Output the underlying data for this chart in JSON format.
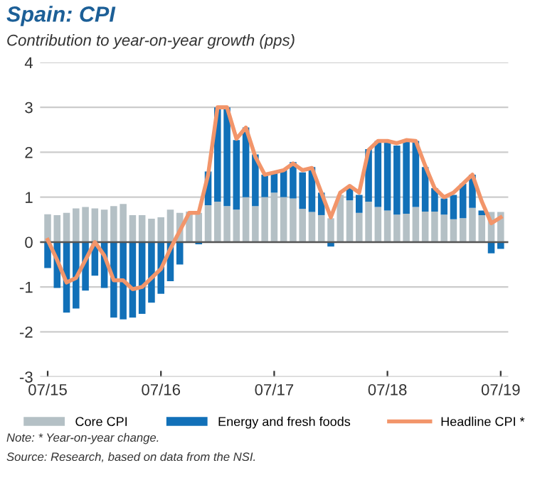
{
  "chart_data": {
    "type": "bar",
    "stacked": true,
    "title": "Spain: CPI",
    "subtitle": "Contribution to year-on-year growth (pps)",
    "categories": [
      "07/15",
      null,
      null,
      null,
      null,
      null,
      null,
      null,
      null,
      null,
      null,
      null,
      "07/16",
      null,
      null,
      null,
      null,
      null,
      null,
      null,
      null,
      null,
      null,
      null,
      "07/17",
      null,
      null,
      null,
      null,
      null,
      null,
      null,
      null,
      null,
      null,
      null,
      "07/18",
      null,
      null,
      null,
      null,
      null,
      null,
      null,
      null,
      null,
      null,
      null,
      "07/19"
    ],
    "series": [
      {
        "name": "Core CPI",
        "color": "#b4c0c5",
        "values": [
          0.62,
          0.6,
          0.65,
          0.75,
          0.78,
          0.75,
          0.72,
          0.8,
          0.85,
          0.6,
          0.6,
          0.52,
          0.55,
          0.72,
          0.65,
          0.68,
          0.65,
          0.82,
          0.9,
          0.8,
          0.72,
          1.0,
          0.8,
          1.0,
          1.1,
          1.0,
          0.97,
          0.74,
          0.67,
          0.6,
          0.53,
          1.05,
          0.93,
          0.65,
          0.9,
          0.78,
          0.7,
          0.61,
          0.63,
          0.78,
          0.68,
          0.68,
          0.61,
          0.51,
          0.53,
          0.76,
          0.6,
          0.67,
          0.67
        ]
      },
      {
        "name": "Energy and fresh foods",
        "color": "#1170b8",
        "values": [
          -0.58,
          -1.02,
          -1.57,
          -1.48,
          -1.08,
          -0.75,
          -1.02,
          -1.68,
          -1.72,
          -1.68,
          -1.6,
          -1.35,
          -1.15,
          -0.87,
          -0.5,
          0,
          -0.05,
          0.75,
          2.1,
          2.2,
          1.55,
          1.55,
          1.15,
          0.5,
          0.43,
          0.6,
          0.81,
          0.81,
          1.0,
          0.5,
          -0.1,
          0,
          0.27,
          0.4,
          1.17,
          1.47,
          1.55,
          1.54,
          1.62,
          1.47,
          0.99,
          0.52,
          0.36,
          0.54,
          0.77,
          0.74,
          0.1,
          -0.25,
          -0.15
        ]
      },
      {
        "name": "Headline CPI *",
        "type": "line",
        "color": "#f2956a",
        "values": [
          0.05,
          -0.4,
          -0.9,
          -0.8,
          -0.4,
          0,
          -0.3,
          -0.85,
          -0.85,
          -1.05,
          -1.0,
          -0.8,
          -0.6,
          -0.15,
          0.25,
          0.65,
          0.65,
          1.5,
          3.0,
          3.0,
          2.3,
          2.55,
          1.9,
          1.5,
          1.55,
          1.6,
          1.75,
          1.6,
          1.65,
          1.1,
          0.55,
          1.1,
          1.25,
          1.1,
          2.05,
          2.25,
          2.25,
          2.2,
          2.27,
          2.25,
          1.7,
          1.2,
          1.0,
          1.1,
          1.3,
          1.5,
          0.9,
          0.42,
          0.55
        ]
      }
    ],
    "ylim": [
      -3,
      4
    ],
    "yticks": [
      -3,
      -2,
      -1,
      0,
      1,
      2,
      3,
      4
    ],
    "grid": "y",
    "legend": "bottom",
    "annotations": [
      "Note: * Year-on-year change.",
      "Source: Research, based on data from the NSI."
    ]
  }
}
